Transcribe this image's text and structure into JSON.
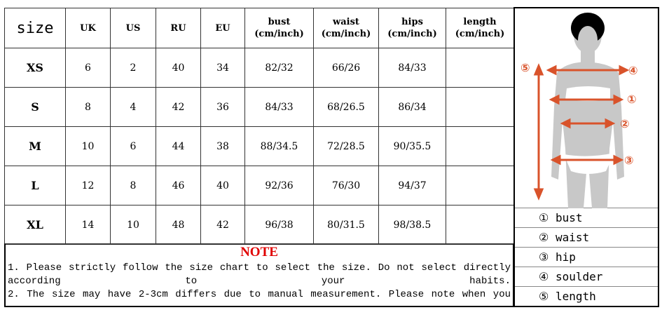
{
  "table": {
    "headers": [
      "size",
      "UK",
      "US",
      "RU",
      "EU",
      "bust\n(cm/inch)",
      "waist\n(cm/inch)",
      "hips\n(cm/inch)",
      "length\n(cm/inch)"
    ],
    "header_lines": [
      [
        "size"
      ],
      [
        "UK"
      ],
      [
        "US"
      ],
      [
        "RU"
      ],
      [
        "EU"
      ],
      [
        "bust",
        "(cm/inch)"
      ],
      [
        "waist",
        "(cm/inch)"
      ],
      [
        "hips",
        "(cm/inch)"
      ],
      [
        "length",
        "(cm/inch)"
      ]
    ],
    "rows": [
      [
        "XS",
        "6",
        "2",
        "40",
        "34",
        "82/32",
        "66/26",
        "84/33",
        ""
      ],
      [
        "S",
        "8",
        "4",
        "42",
        "36",
        "84/33",
        "68/26.5",
        "86/34",
        ""
      ],
      [
        "M",
        "10",
        "6",
        "44",
        "38",
        "88/34.5",
        "72/28.5",
        "90/35.5",
        ""
      ],
      [
        "L",
        "12",
        "8",
        "46",
        "40",
        "92/36",
        "76/30",
        "94/37",
        ""
      ],
      [
        "XL",
        "14",
        "10",
        "48",
        "42",
        "96/38",
        "80/31.5",
        "98/38.5",
        ""
      ]
    ]
  },
  "note": {
    "title": "NOTE",
    "lines": [
      "1. Please strictly follow the size chart to select the size. Do not select directly according to your habits.",
      "2. The size may have 2-3cm differs due to manual measurement. Please note when you"
    ]
  },
  "figure": {
    "accent": "#d9532b",
    "markers": [
      "①",
      "②",
      "③",
      "④",
      "⑤"
    ],
    "legend": [
      "① bust",
      "② waist",
      "③ hip",
      "④ soulder",
      "⑤ length"
    ]
  }
}
